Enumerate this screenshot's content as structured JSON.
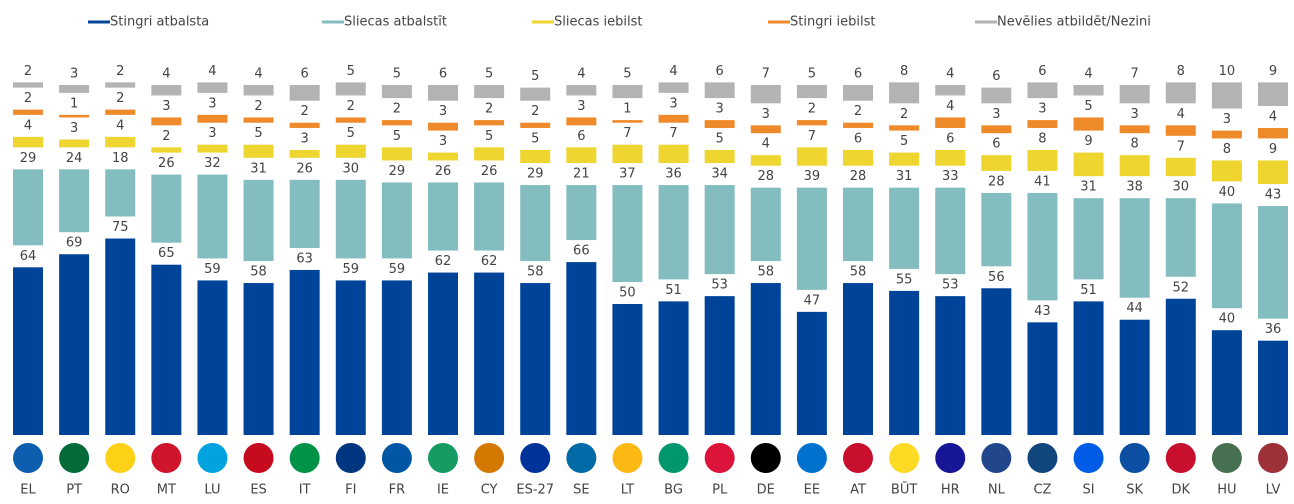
{
  "chart_data": {
    "type": "bar",
    "stacked": true,
    "categories": [
      "EL",
      "PT",
      "RO",
      "MT",
      "LU",
      "ES",
      "IT",
      "FI",
      "FR",
      "IE",
      "CY",
      "ES-27",
      "SE",
      "LT",
      "BG",
      "PL",
      "DE",
      "EE",
      "AT",
      "BŪT",
      "HR",
      "NL",
      "CZ",
      "SI",
      "SK",
      "DK",
      "HU",
      "LV"
    ],
    "series": [
      {
        "name": "Stingri atbalsta",
        "color": "#00449a",
        "values": [
          64,
          69,
          75,
          65,
          59,
          58,
          63,
          59,
          59,
          62,
          62,
          58,
          66,
          50,
          51,
          53,
          58,
          47,
          58,
          55,
          53,
          56,
          43,
          51,
          44,
          52,
          40,
          36
        ]
      },
      {
        "name": "Sliecas atbalstīt",
        "color": "#83bdbf",
        "values": [
          29,
          24,
          18,
          26,
          32,
          31,
          26,
          30,
          29,
          26,
          26,
          29,
          21,
          37,
          36,
          34,
          28,
          39,
          28,
          31,
          33,
          28,
          41,
          31,
          38,
          30,
          40,
          43
        ]
      },
      {
        "name": "Sliecas iebilst",
        "color": "#eed530",
        "values": [
          4,
          3,
          4,
          2,
          3,
          5,
          3,
          5,
          5,
          3,
          5,
          5,
          6,
          7,
          7,
          5,
          4,
          7,
          6,
          5,
          6,
          6,
          8,
          9,
          8,
          7,
          8,
          9
        ]
      },
      {
        "name": "Stingri iebilst",
        "color": "#ef8a2b",
        "values": [
          2,
          1,
          2,
          3,
          3,
          2,
          2,
          2,
          2,
          3,
          2,
          2,
          3,
          1,
          3,
          3,
          3,
          2,
          2,
          2,
          4,
          3,
          3,
          5,
          3,
          4,
          3,
          4
        ]
      },
      {
        "name": "Nevēlies atbildēt/Nezini",
        "color": "#b3b3b3",
        "values": [
          2,
          3,
          2,
          4,
          4,
          4,
          6,
          5,
          5,
          6,
          5,
          5,
          4,
          5,
          4,
          6,
          7,
          5,
          6,
          8,
          4,
          6,
          6,
          4,
          7,
          8,
          10,
          9
        ]
      }
    ]
  }
}
